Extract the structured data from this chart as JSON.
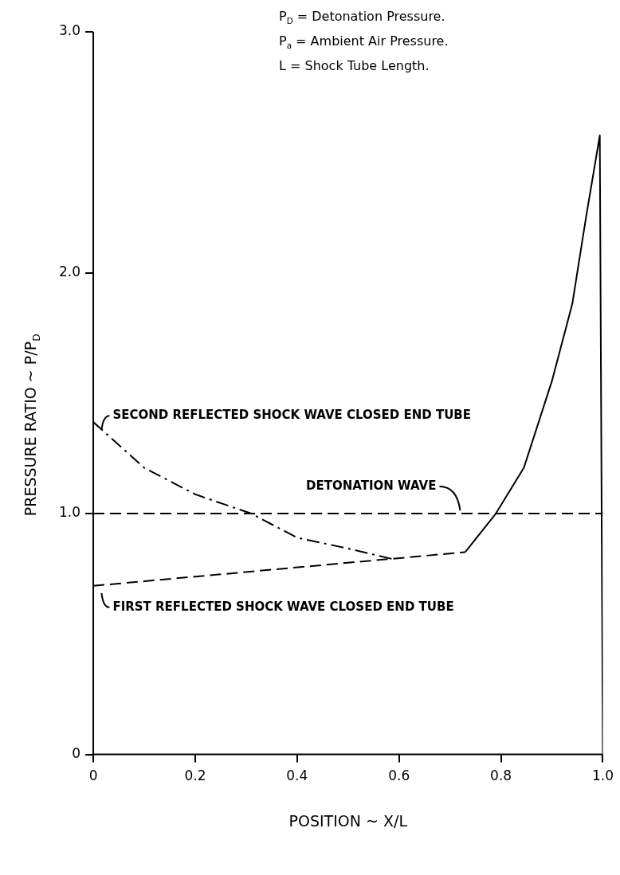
{
  "chart_data": {
    "type": "line",
    "xlabel": "POSITION ~ X/L",
    "ylabel": "PRESSURE RATIO ~ P/P$_{D}$",
    "annotations": [
      "P$_{D}$ = Detonation Pressure.",
      "P$_{a}$ = Ambient Air Pressure.",
      "L = Shock Tube Length.",
      {
        "text": "SECOND REFLECTED SHOCK WAVE CLOSED END TUBE",
        "x": 0.01,
        "y": 1.36
      },
      {
        "text": "FIRST REFLECTED SHOCK WAVE CLOSED END TUBE",
        "x": 0.01,
        "y": 0.69
      }
    ],
    "xlim": [
      0,
      1
    ],
    "ylim": [
      0,
      3
    ],
    "xticks": [
      0,
      0.2,
      0.4,
      0.6,
      0.8,
      {
        "value": 1,
        "label": "1.0"
      }
    ],
    "yticks": [
      0,
      {
        "value": 1,
        "label": "1.0"
      },
      {
        "value": 2,
        "label": "2.0"
      },
      {
        "value": 3,
        "label": "3.0"
      }
    ],
    "grid": false,
    "legend": false,
    "marker": "none",
    "ref_lines": [
      {
        "axis": "y",
        "value": 1.0,
        "label": "DETONATION WAVE",
        "color": "#000000",
        "line_style": "dashed"
      }
    ],
    "series": [
      {
        "color": "#000000",
        "line_style": "dashdot",
        "x": [
          0,
          0.1,
          0.2,
          0.31,
          0.4,
          0.5,
          0.59
        ],
        "values": [
          1.38,
          1.19,
          1.08,
          1.0,
          0.9,
          0.855,
          0.81
        ]
      },
      {
        "color": "#000000",
        "line_style": "dashed",
        "x": [
          0,
          0.73
        ],
        "values": [
          0.7,
          0.84
        ]
      },
      {
        "color": "#000000",
        "line_style": "solid",
        "x": [
          0.73,
          0.79,
          0.845,
          0.9,
          0.94,
          0.967,
          0.994,
          1.0
        ],
        "values": [
          0.84,
          1.0,
          1.19,
          1.55,
          1.87,
          2.23,
          2.57,
          0
        ]
      }
    ]
  }
}
